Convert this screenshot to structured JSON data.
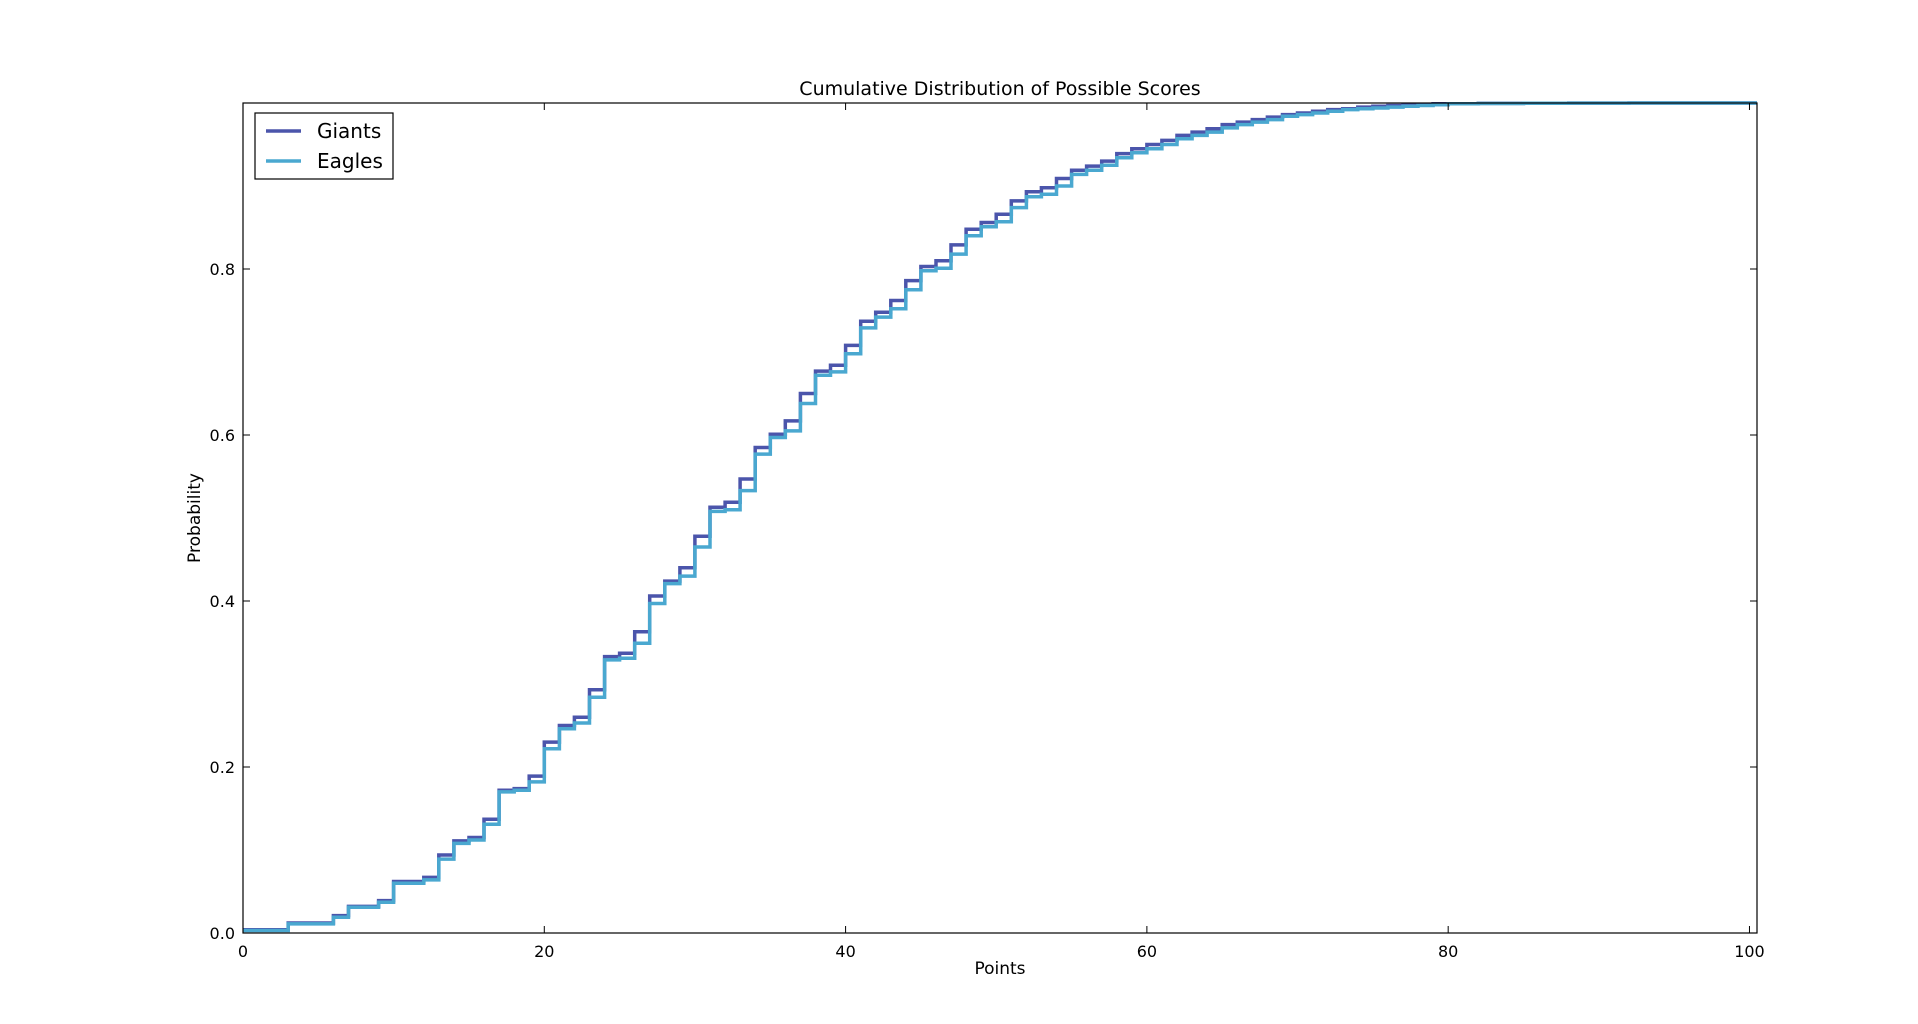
{
  "chart_data": {
    "type": "line",
    "drawstyle": "steps-post",
    "title": "Cumulative Distribution of Possible Scores",
    "xlabel": "Points",
    "ylabel": "Probability",
    "xlim": [
      0,
      100.5
    ],
    "ylim": [
      0,
      1.0
    ],
    "xticks": [
      0,
      20,
      40,
      60,
      80,
      100
    ],
    "yticks": [
      0.0,
      0.2,
      0.4,
      0.6,
      0.8
    ],
    "xtick_labels": [
      "0",
      "20",
      "40",
      "60",
      "80",
      "100"
    ],
    "ytick_labels": [
      "0.0",
      "0.2",
      "0.4",
      "0.6",
      "0.8"
    ],
    "grid": false,
    "legend_position": "upper-left",
    "series": [
      {
        "name": "Giants",
        "color": "#4b55ab",
        "x": [
          0,
          3,
          6,
          7,
          9,
          10,
          12,
          13,
          14,
          15,
          16,
          17,
          18,
          19,
          20,
          21,
          22,
          23,
          24,
          25,
          26,
          27,
          28,
          29,
          30,
          31,
          32,
          33,
          34,
          35,
          36,
          37,
          38,
          39,
          40,
          41,
          42,
          43,
          44,
          45,
          46,
          47,
          48,
          49,
          50,
          51,
          52,
          53,
          54,
          55,
          56,
          57,
          58,
          59,
          60,
          61,
          62,
          63,
          64,
          65,
          66,
          67,
          68,
          69,
          70,
          71,
          72,
          73,
          74,
          75,
          76,
          77,
          78,
          79,
          80,
          82,
          85,
          88,
          92
        ],
        "y": [
          0.004,
          0.012,
          0.021,
          0.032,
          0.039,
          0.062,
          0.067,
          0.094,
          0.111,
          0.115,
          0.137,
          0.172,
          0.174,
          0.189,
          0.23,
          0.25,
          0.26,
          0.293,
          0.333,
          0.337,
          0.363,
          0.406,
          0.424,
          0.44,
          0.478,
          0.513,
          0.519,
          0.547,
          0.585,
          0.601,
          0.617,
          0.65,
          0.677,
          0.684,
          0.708,
          0.737,
          0.748,
          0.762,
          0.786,
          0.803,
          0.81,
          0.829,
          0.848,
          0.856,
          0.866,
          0.882,
          0.893,
          0.898,
          0.909,
          0.919,
          0.924,
          0.93,
          0.939,
          0.945,
          0.95,
          0.955,
          0.961,
          0.965,
          0.969,
          0.974,
          0.977,
          0.98,
          0.983,
          0.986,
          0.988,
          0.99,
          0.992,
          0.993,
          0.995,
          0.996,
          0.997,
          0.998,
          0.998,
          0.999,
          0.999,
          0.9995,
          0.9998,
          0.9999,
          1.0
        ]
      },
      {
        "name": "Eagles",
        "color": "#4aa8d0",
        "x": [
          0,
          3,
          6,
          7,
          9,
          10,
          12,
          13,
          14,
          15,
          16,
          17,
          18,
          19,
          20,
          21,
          22,
          23,
          24,
          25,
          26,
          27,
          28,
          29,
          30,
          31,
          32,
          33,
          34,
          35,
          36,
          37,
          38,
          39,
          40,
          41,
          42,
          43,
          44,
          45,
          46,
          47,
          48,
          49,
          50,
          51,
          52,
          53,
          54,
          55,
          56,
          57,
          58,
          59,
          60,
          61,
          62,
          63,
          64,
          65,
          66,
          67,
          68,
          69,
          70,
          71,
          72,
          73,
          74,
          75,
          76,
          77,
          78,
          79,
          80,
          82,
          85,
          88,
          92
        ],
        "y": [
          0.003,
          0.011,
          0.019,
          0.031,
          0.037,
          0.06,
          0.064,
          0.089,
          0.108,
          0.112,
          0.131,
          0.17,
          0.172,
          0.182,
          0.222,
          0.246,
          0.253,
          0.284,
          0.329,
          0.331,
          0.349,
          0.397,
          0.421,
          0.43,
          0.465,
          0.508,
          0.51,
          0.533,
          0.577,
          0.597,
          0.605,
          0.638,
          0.672,
          0.676,
          0.698,
          0.729,
          0.742,
          0.752,
          0.775,
          0.798,
          0.801,
          0.818,
          0.84,
          0.851,
          0.857,
          0.874,
          0.887,
          0.89,
          0.9,
          0.914,
          0.919,
          0.925,
          0.934,
          0.94,
          0.945,
          0.95,
          0.957,
          0.961,
          0.965,
          0.97,
          0.974,
          0.977,
          0.98,
          0.984,
          0.986,
          0.988,
          0.99,
          0.992,
          0.993,
          0.994,
          0.995,
          0.996,
          0.997,
          0.998,
          0.999,
          0.9994,
          0.9997,
          0.9999,
          1.0
        ]
      }
    ]
  }
}
